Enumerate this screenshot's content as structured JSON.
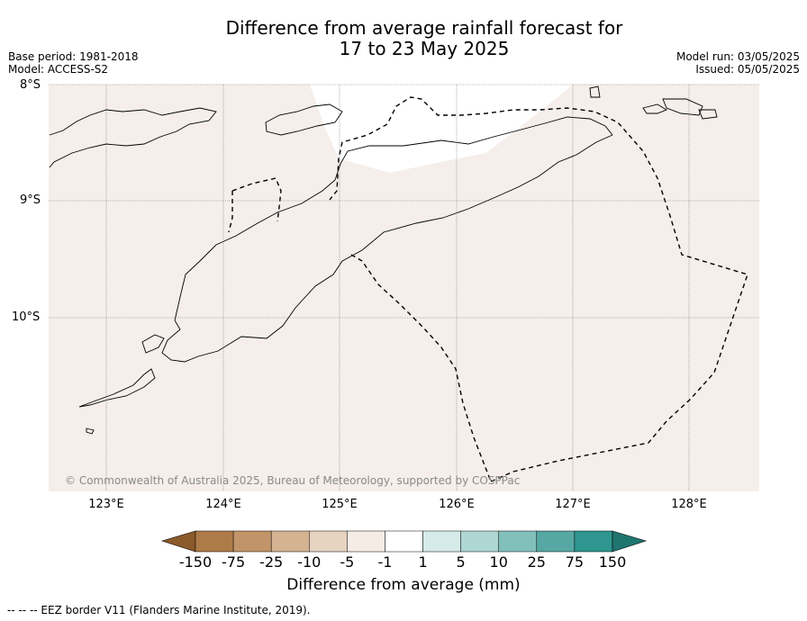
{
  "title_line1": "Difference from average rainfall forecast for",
  "title_line2": "17 to 23 May 2025",
  "base_period": "Base period: 1981-2018",
  "model": "Model: ACCESS-S2",
  "model_run": "Model run: 03/05/2025",
  "issued": "Issued: 05/05/2025",
  "latitudes": [
    "8°S",
    "9°S",
    "10°S"
  ],
  "longitudes": [
    "123°E",
    "124°E",
    "125°E",
    "126°E",
    "127°E",
    "128°E"
  ],
  "copyright": "© Commonwealth of Australia 2025, Bureau of Meteorology, supported by COSPPac",
  "colorbar": {
    "ticks": [
      "-150",
      "-75",
      "-25",
      "-10",
      "-5",
      "-1",
      "1",
      "5",
      "10",
      "25",
      "75",
      "150"
    ],
    "colors": [
      "#8b5a2b",
      "#ad7a48",
      "#c29469",
      "#d4b392",
      "#e6d3c0",
      "#f5ece6",
      "#ffffff",
      "#d6ebe9",
      "#aed7d4",
      "#82c0bc",
      "#57a8a4",
      "#2f9690",
      "#1f7570"
    ],
    "label": "Difference from average (mm)"
  },
  "map_colors": {
    "background": "#f5eeea",
    "wet_patch": "#ffffff"
  },
  "footnote": "--  --  -- EEZ border V11 (Flanders Marine Institute, 2019)."
}
